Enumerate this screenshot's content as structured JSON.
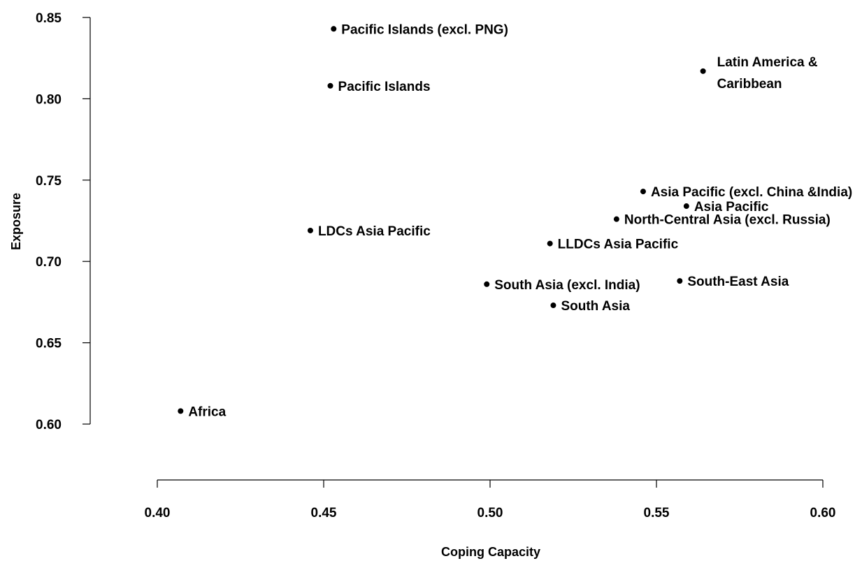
{
  "chart_data": {
    "type": "scatter",
    "title": "",
    "xlabel": "Coping Capacity",
    "ylabel": "Exposure",
    "xlim": [
      0.4,
      0.6
    ],
    "ylim": [
      0.6,
      0.85
    ],
    "x_ticks": [
      "0.40",
      "0.45",
      "0.50",
      "0.55",
      "0.60"
    ],
    "y_ticks": [
      "0.60",
      "0.65",
      "0.70",
      "0.75",
      "0.80",
      "0.85"
    ],
    "grid": false,
    "points": [
      {
        "label": "Pacific Islands (excl. PNG)",
        "x": 0.453,
        "y": 0.843
      },
      {
        "label": "Pacific Islands",
        "x": 0.452,
        "y": 0.808
      },
      {
        "label": "Latin America & Caribbean",
        "x": 0.564,
        "y": 0.817
      },
      {
        "label": "Asia Pacific (excl. China &India)",
        "x": 0.546,
        "y": 0.743
      },
      {
        "label": "Asia Pacific",
        "x": 0.559,
        "y": 0.734
      },
      {
        "label": "North-Central Asia (excl. Russia)",
        "x": 0.538,
        "y": 0.726
      },
      {
        "label": "LDCs Asia Pacific",
        "x": 0.446,
        "y": 0.719
      },
      {
        "label": "LLDCs Asia Pacific",
        "x": 0.518,
        "y": 0.711
      },
      {
        "label": "South Asia (excl. India)",
        "x": 0.499,
        "y": 0.686
      },
      {
        "label": "South-East Asia",
        "x": 0.557,
        "y": 0.688
      },
      {
        "label": "South Asia",
        "x": 0.519,
        "y": 0.673
      },
      {
        "label": "Africa",
        "x": 0.407,
        "y": 0.608
      }
    ]
  }
}
